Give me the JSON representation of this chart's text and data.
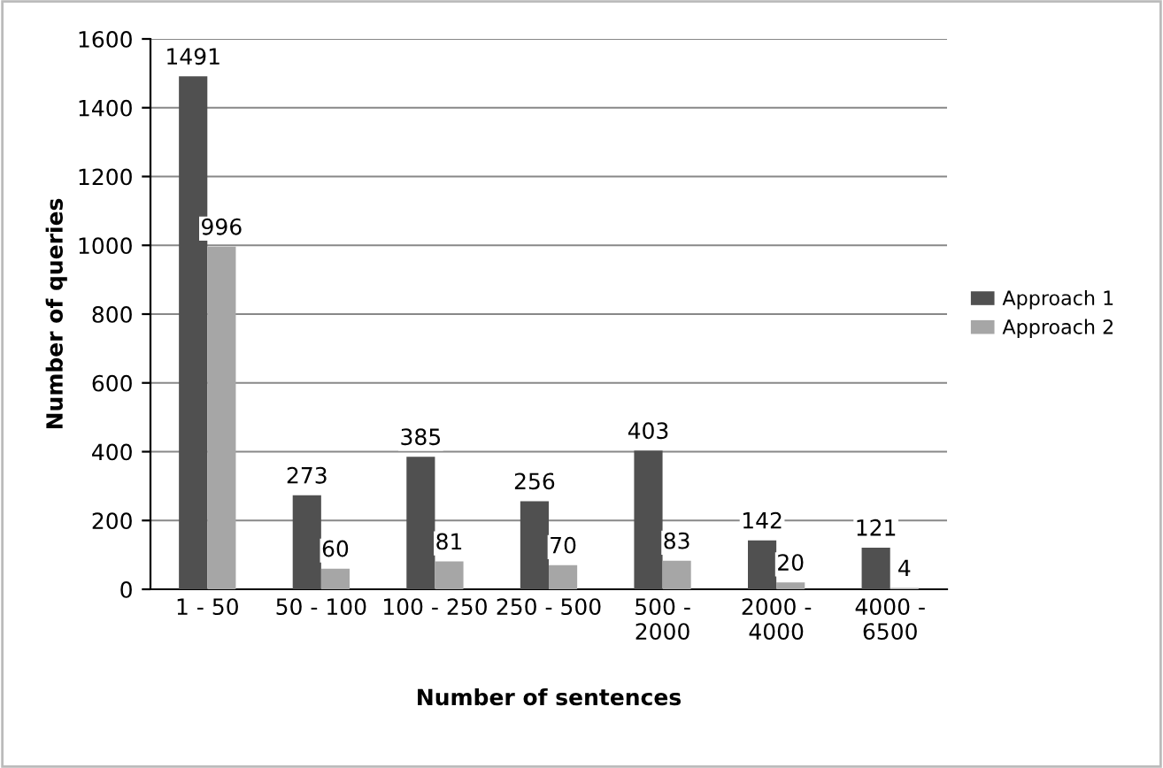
{
  "chart_data": {
    "type": "bar",
    "xlabel": "Number of sentences",
    "ylabel": "Number of queries",
    "categories": [
      "1 - 50",
      "50 - 100",
      "100 - 250",
      "250 - 500",
      "500 -\n2000",
      "2000 -\n4000",
      "4000 -\n6500"
    ],
    "series": [
      {
        "name": "Approach 1",
        "color": "#505050",
        "values": [
          1491,
          273,
          385,
          256,
          403,
          142,
          121
        ]
      },
      {
        "name": "Approach 2",
        "color": "#a6a6a6",
        "values": [
          996,
          60,
          81,
          70,
          83,
          20,
          4
        ]
      }
    ],
    "ylim": [
      0,
      1600
    ],
    "yticks": [
      0,
      200,
      400,
      600,
      800,
      1000,
      1200,
      1400,
      1600
    ],
    "grid": "y",
    "legend": "right",
    "data_labels": true
  }
}
